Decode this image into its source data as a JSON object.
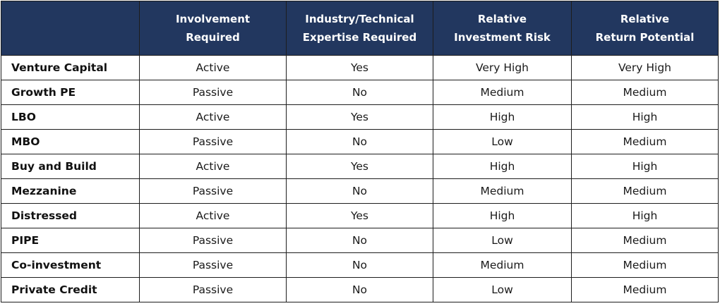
{
  "table": {
    "headers": [
      [
        "",
        ""
      ],
      [
        "Involvement",
        "Required"
      ],
      [
        "Industry/Technical",
        "Expertise Required"
      ],
      [
        "Relative",
        "Investment Risk"
      ],
      [
        "Relative",
        "Return Potential"
      ]
    ],
    "rows": [
      [
        "Venture Capital",
        "Active",
        "Yes",
        "Very High",
        "Very High"
      ],
      [
        "Growth PE",
        "Passive",
        "No",
        "Medium",
        "Medium"
      ],
      [
        "LBO",
        "Active",
        "Yes",
        "High",
        "High"
      ],
      [
        "MBO",
        "Passive",
        "No",
        "Low",
        "Medium"
      ],
      [
        "Buy and Build",
        "Active",
        "Yes",
        "High",
        "High"
      ],
      [
        "Mezzanine",
        "Passive",
        "No",
        "Medium",
        "Medium"
      ],
      [
        "Distressed",
        "Active",
        "Yes",
        "High",
        "High"
      ],
      [
        "PIPE",
        "Passive",
        "No",
        "Low",
        "Medium"
      ],
      [
        "Co-investment",
        "Passive",
        "No",
        "Medium",
        "Medium"
      ],
      [
        "Private Credit",
        "Passive",
        "No",
        "Low",
        "Medium"
      ]
    ]
  },
  "colors": {
    "header_bg": "#22375f",
    "header_text": "#ffffff",
    "border": "#1d1d1d"
  }
}
